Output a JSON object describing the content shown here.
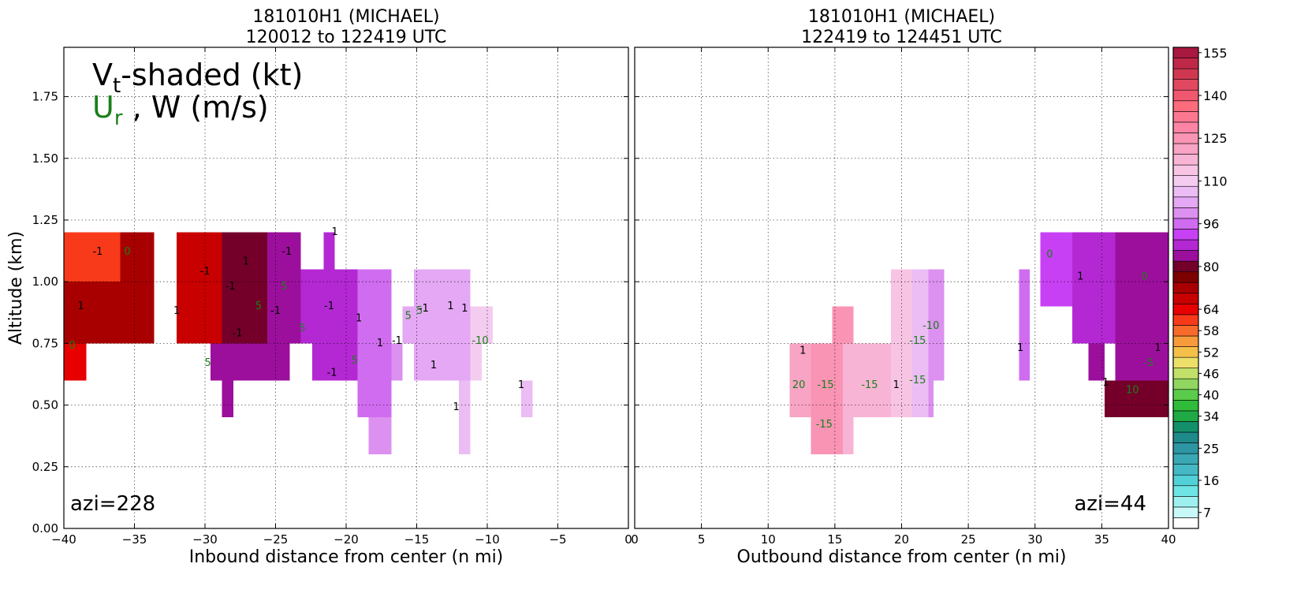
{
  "chart_data": [
    {
      "type": "heatmap",
      "panel": "left",
      "title_line1": "181010H1 (MICHAEL)",
      "title_line2": "120012 to 122419 UTC",
      "xlabel": "Inbound distance from center (n mi)",
      "ylabel": "Altitude (km)",
      "xlim": [
        -40,
        0
      ],
      "ylim": [
        0,
        1.95
      ],
      "x_ticks": [
        -40,
        -35,
        -30,
        -25,
        -20,
        -15,
        -10,
        -5,
        0
      ],
      "x_tick_labels": [
        "−40",
        "−35",
        "−30",
        "−25",
        "−20",
        "−15",
        "−10",
        "−5",
        "0"
      ],
      "y_ticks": [
        0,
        0.25,
        0.5,
        0.75,
        1.0,
        1.25,
        1.5,
        1.75
      ],
      "y_tick_labels": [
        "0.00",
        "0.25",
        "0.50",
        "0.75",
        "1.00",
        "1.25",
        "1.50",
        "1.75"
      ],
      "grid": true,
      "legend_line1_main": "V",
      "legend_line1_sub": "t",
      "legend_line1_rest": "-shaded (kt)",
      "legend_line2_main": "U",
      "legend_line2_sub": "r",
      "legend_line2_rest": " , W (m/s)",
      "annotation": "azi=228",
      "cells": [
        {
          "x0": -40,
          "x1": -33.6,
          "y0": 0.75,
          "y1": 1.2,
          "v": 72
        },
        {
          "x0": -40,
          "x1": -38.4,
          "y0": 0.6,
          "y1": 0.75,
          "v": 66
        },
        {
          "x0": -40,
          "x1": -36,
          "y0": 1.0,
          "y1": 1.2,
          "v": 62
        },
        {
          "x0": -32,
          "x1": -25.6,
          "y0": 0.75,
          "y1": 1.2,
          "v": 80
        },
        {
          "x0": -32,
          "x1": -28.8,
          "y0": 0.75,
          "y1": 1.2,
          "v": 70
        },
        {
          "x0": -29.6,
          "x1": -24,
          "y0": 0.6,
          "y1": 0.75,
          "v": 84
        },
        {
          "x0": -28.8,
          "x1": -28,
          "y0": 0.45,
          "y1": 0.6,
          "v": 84
        },
        {
          "x0": -25.6,
          "x1": -23.2,
          "y0": 0.75,
          "y1": 1.2,
          "v": 86
        },
        {
          "x0": -23.2,
          "x1": -21.6,
          "y0": 0.75,
          "y1": 1.05,
          "v": 88
        },
        {
          "x0": -22.4,
          "x1": -21.6,
          "y0": 0.6,
          "y1": 0.75,
          "v": 90
        },
        {
          "x0": -21.6,
          "x1": -20.8,
          "y0": 1.05,
          "y1": 1.2,
          "v": 88
        },
        {
          "x0": -21.6,
          "x1": -19.2,
          "y0": 0.6,
          "y1": 1.05,
          "v": 90
        },
        {
          "x0": -19.2,
          "x1": -16.8,
          "y0": 0.45,
          "y1": 1.05,
          "v": 96
        },
        {
          "x0": -18.4,
          "x1": -16.8,
          "y0": 0.3,
          "y1": 0.45,
          "v": 100
        },
        {
          "x0": -16.8,
          "x1": -16,
          "y0": 0.6,
          "y1": 0.75,
          "v": 100
        },
        {
          "x0": -16,
          "x1": -15.2,
          "y0": 0.75,
          "y1": 0.9,
          "v": 104
        },
        {
          "x0": -15.2,
          "x1": -11.2,
          "y0": 0.6,
          "y1": 1.05,
          "v": 106
        },
        {
          "x0": -12,
          "x1": -11.2,
          "y0": 0.3,
          "y1": 0.6,
          "v": 108
        },
        {
          "x0": -11.2,
          "x1": -10.4,
          "y0": 0.6,
          "y1": 0.9,
          "v": 110
        },
        {
          "x0": -10.4,
          "x1": -9.6,
          "y0": 0.75,
          "y1": 0.9,
          "v": 112
        },
        {
          "x0": -7.6,
          "x1": -6.8,
          "y0": 0.45,
          "y1": 0.6,
          "v": 108
        }
      ],
      "contour_labels": [
        {
          "x": -37.6,
          "y": 1.12,
          "t": "-1"
        },
        {
          "x": -35.5,
          "y": 1.12,
          "t": "0"
        },
        {
          "x": -38.8,
          "y": 0.9,
          "t": "1"
        },
        {
          "x": -39.4,
          "y": 0.74,
          "t": "0"
        },
        {
          "x": -32,
          "y": 0.88,
          "t": "1"
        },
        {
          "x": -30,
          "y": 1.04,
          "t": "-1"
        },
        {
          "x": -27.1,
          "y": 1.08,
          "t": "1"
        },
        {
          "x": -28.2,
          "y": 0.98,
          "t": "-1"
        },
        {
          "x": -26.2,
          "y": 0.9,
          "t": "5"
        },
        {
          "x": -24.4,
          "y": 0.98,
          "t": "5"
        },
        {
          "x": -25,
          "y": 0.88,
          "t": "-1"
        },
        {
          "x": -24.2,
          "y": 1.12,
          "t": "-1"
        },
        {
          "x": -27.7,
          "y": 0.79,
          "t": "-1"
        },
        {
          "x": -23.1,
          "y": 0.81,
          "t": "5"
        },
        {
          "x": -29.8,
          "y": 0.67,
          "t": "5"
        },
        {
          "x": -20.8,
          "y": 1.2,
          "t": "1"
        },
        {
          "x": -21.2,
          "y": 0.9,
          "t": "-1"
        },
        {
          "x": -21,
          "y": 0.63,
          "t": "-1"
        },
        {
          "x": -19.1,
          "y": 0.85,
          "t": "1"
        },
        {
          "x": -19.4,
          "y": 0.68,
          "t": "5"
        },
        {
          "x": -17.6,
          "y": 0.75,
          "t": "1"
        },
        {
          "x": -16.4,
          "y": 0.76,
          "t": "-1"
        },
        {
          "x": -15.6,
          "y": 0.86,
          "t": "5"
        },
        {
          "x": -14.8,
          "y": 0.88,
          "t": "5"
        },
        {
          "x": -14.5,
          "y": 0.89,
          "t": "-1"
        },
        {
          "x": -12.6,
          "y": 0.9,
          "t": "1"
        },
        {
          "x": -11.6,
          "y": 0.89,
          "t": "1"
        },
        {
          "x": -13.8,
          "y": 0.66,
          "t": "1"
        },
        {
          "x": -10.5,
          "y": 0.76,
          "t": "-10"
        },
        {
          "x": -7.6,
          "y": 0.58,
          "t": "1"
        },
        {
          "x": -12.2,
          "y": 0.49,
          "t": "1"
        }
      ]
    },
    {
      "type": "heatmap",
      "panel": "right",
      "title_line1": "181010H1 (MICHAEL)",
      "title_line2": "122419 to 124451 UTC",
      "xlabel": "Outbound distance from center (n mi)",
      "xlim": [
        0,
        40
      ],
      "ylim": [
        0,
        1.95
      ],
      "x_ticks": [
        0,
        5,
        10,
        15,
        20,
        25,
        30,
        35,
        40
      ],
      "x_tick_labels": [
        "0",
        "5",
        "10",
        "15",
        "20",
        "25",
        "30",
        "35",
        "40"
      ],
      "grid": true,
      "annotation": "azi=44",
      "cells": [
        {
          "x0": 11.6,
          "x1": 13.2,
          "y0": 0.45,
          "y1": 0.75,
          "v": 124
        },
        {
          "x0": 13.2,
          "x1": 15.6,
          "y0": 0.3,
          "y1": 0.75,
          "v": 126
        },
        {
          "x0": 14.8,
          "x1": 16.4,
          "y0": 0.75,
          "y1": 0.9,
          "v": 126
        },
        {
          "x0": 15.6,
          "x1": 19.2,
          "y0": 0.45,
          "y1": 0.75,
          "v": 120
        },
        {
          "x0": 15.6,
          "x1": 16.4,
          "y0": 0.3,
          "y1": 0.45,
          "v": 120
        },
        {
          "x0": 19.2,
          "x1": 20.8,
          "y0": 0.45,
          "y1": 1.05,
          "v": 116
        },
        {
          "x0": 20.8,
          "x1": 22,
          "y0": 0.45,
          "y1": 1.05,
          "v": 108
        },
        {
          "x0": 22,
          "x1": 23.2,
          "y0": 0.6,
          "y1": 1.05,
          "v": 100
        },
        {
          "x0": 22,
          "x1": 22.4,
          "y0": 0.45,
          "y1": 0.6,
          "v": 100
        },
        {
          "x0": 28.8,
          "x1": 29.6,
          "y0": 0.6,
          "y1": 1.05,
          "v": 98
        },
        {
          "x0": 30.4,
          "x1": 32.8,
          "y0": 0.9,
          "y1": 1.2,
          "v": 94
        },
        {
          "x0": 32.8,
          "x1": 36,
          "y0": 0.75,
          "y1": 1.2,
          "v": 88
        },
        {
          "x0": 34,
          "x1": 35.2,
          "y0": 0.6,
          "y1": 0.75,
          "v": 86
        },
        {
          "x0": 36,
          "x1": 40,
          "y0": 0.6,
          "y1": 1.2,
          "v": 86
        },
        {
          "x0": 35.2,
          "x1": 40,
          "y0": 0.45,
          "y1": 0.6,
          "v": 82
        }
      ],
      "contour_labels": [
        {
          "x": 12.6,
          "y": 0.72,
          "t": "1"
        },
        {
          "x": 12.3,
          "y": 0.58,
          "t": "20"
        },
        {
          "x": 14.3,
          "y": 0.58,
          "t": "-15"
        },
        {
          "x": 14.2,
          "y": 0.42,
          "t": "-15"
        },
        {
          "x": 17.6,
          "y": 0.58,
          "t": "-15"
        },
        {
          "x": 19.6,
          "y": 0.58,
          "t": "1"
        },
        {
          "x": 21.2,
          "y": 0.6,
          "t": "-15"
        },
        {
          "x": 21.2,
          "y": 0.76,
          "t": "-15"
        },
        {
          "x": 22.2,
          "y": 0.82,
          "t": "-10"
        },
        {
          "x": 28.9,
          "y": 0.73,
          "t": "1"
        },
        {
          "x": 31.1,
          "y": 1.11,
          "t": "0"
        },
        {
          "x": 33.4,
          "y": 1.02,
          "t": "1"
        },
        {
          "x": 38.2,
          "y": 1.02,
          "t": "0"
        },
        {
          "x": 39.2,
          "y": 0.73,
          "t": "1"
        },
        {
          "x": 38.5,
          "y": 0.67,
          "t": "-5"
        },
        {
          "x": 35.3,
          "y": 0.59,
          "t": "1"
        },
        {
          "x": 37.3,
          "y": 0.56,
          "t": "10"
        }
      ]
    }
  ],
  "colorbar": {
    "levels": [
      4,
      7,
      10,
      13,
      16,
      19,
      22,
      25,
      28,
      31,
      34,
      37,
      40,
      43,
      46,
      49,
      52,
      55,
      58,
      61,
      64,
      68,
      72,
      76,
      80,
      84,
      88,
      92,
      96,
      100,
      104,
      108,
      110,
      114,
      118,
      122,
      125,
      128,
      132,
      136,
      140,
      144,
      148,
      152,
      155,
      158
    ],
    "colors": [
      "#ffffff",
      "#c8f8f8",
      "#9ef0f0",
      "#6ee4e4",
      "#52d0d8",
      "#44b8c4",
      "#3aa8b4",
      "#2d95a3",
      "#1f8a8a",
      "#138f6a",
      "#1faa45",
      "#30bb3a",
      "#5acb4a",
      "#90d660",
      "#c0e06a",
      "#ede06a",
      "#f4c04a",
      "#f79a3c",
      "#f86a2a",
      "#f83a1a",
      "#e80000",
      "#c80000",
      "#a80000",
      "#7c0000",
      "#74002a",
      "#9c0f9c",
      "#b428d4",
      "#c840f4",
      "#d06cf0",
      "#dc90f0",
      "#e4a8f4",
      "#ecbcf4",
      "#f4ccf0",
      "#f8c4e4",
      "#f8b4d4",
      "#f8a4c4",
      "#fa94b4",
      "#fc84a4",
      "#fc7890",
      "#fc6c7c",
      "#f05870",
      "#e04860",
      "#d03850",
      "#c02848",
      "#a81840"
    ],
    "tick_labels": [
      {
        "value": 7,
        "label": "7"
      },
      {
        "value": 16,
        "label": "16"
      },
      {
        "value": 25,
        "label": "25"
      },
      {
        "value": 34,
        "label": "34"
      },
      {
        "value": 40,
        "label": "40"
      },
      {
        "value": 46,
        "label": "46"
      },
      {
        "value": 52,
        "label": "52"
      },
      {
        "value": 58,
        "label": "58"
      },
      {
        "value": 64,
        "label": "64"
      },
      {
        "value": 80,
        "label": "80"
      },
      {
        "value": 96,
        "label": "96"
      },
      {
        "value": 110,
        "label": "110"
      },
      {
        "value": 125,
        "label": "125"
      },
      {
        "value": 140,
        "label": "140"
      },
      {
        "value": 155,
        "label": "155"
      }
    ]
  }
}
